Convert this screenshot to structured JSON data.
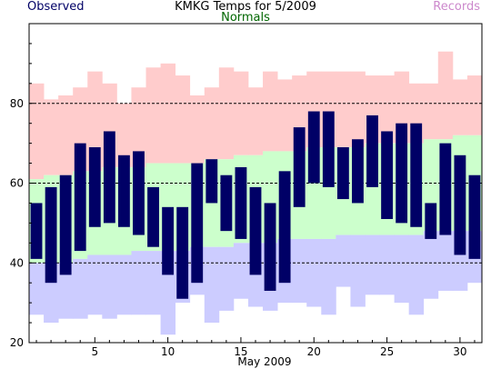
{
  "chart_data": {
    "type": "bar",
    "title": "KMKG Temps for 5/2009",
    "xlabel": "May 2009",
    "ylabel": "",
    "ylim": [
      20,
      100
    ],
    "xlim": [
      0.5,
      31.5
    ],
    "x_ticks": [
      5,
      10,
      15,
      20,
      25,
      30
    ],
    "y_ticks": [
      20,
      40,
      60,
      80
    ],
    "dashed_gridlines": [
      40,
      60,
      80
    ],
    "days": [
      1,
      2,
      3,
      4,
      5,
      6,
      7,
      8,
      9,
      10,
      11,
      12,
      13,
      14,
      15,
      16,
      17,
      18,
      19,
      20,
      21,
      22,
      23,
      24,
      25,
      26,
      27,
      28,
      29,
      30,
      31
    ],
    "legend": {
      "observed": {
        "label": "Observed",
        "color": "#000066"
      },
      "normals": {
        "label": "Normals",
        "color": "#006600"
      },
      "records": {
        "label": "Records",
        "color": "#cc88cc"
      }
    },
    "series": [
      {
        "name": "Observed",
        "color": "#000066",
        "high": [
          55,
          59,
          62,
          70,
          69,
          73,
          67,
          68,
          59,
          54,
          54,
          65,
          66,
          62,
          64,
          59,
          55,
          63,
          74,
          78,
          78,
          69,
          71,
          77,
          73,
          75,
          75,
          55,
          70,
          67,
          62
        ],
        "low": [
          41,
          35,
          37,
          43,
          49,
          50,
          49,
          47,
          44,
          37,
          31,
          35,
          55,
          48,
          46,
          37,
          33,
          35,
          54,
          60,
          59,
          56,
          55,
          59,
          51,
          50,
          49,
          46,
          47,
          42,
          41
        ]
      },
      {
        "name": "Normals",
        "color": "#ccffcc",
        "high": [
          61,
          62,
          62,
          63,
          63,
          64,
          64,
          64,
          65,
          65,
          65,
          65,
          66,
          66,
          67,
          67,
          68,
          68,
          68,
          69,
          69,
          69,
          69,
          70,
          70,
          70,
          70,
          71,
          71,
          72,
          72
        ],
        "low": [
          40,
          40,
          40,
          41,
          42,
          42,
          42,
          43,
          43,
          43,
          43,
          44,
          44,
          44,
          45,
          45,
          45,
          46,
          46,
          46,
          46,
          47,
          47,
          47,
          47,
          47,
          47,
          48,
          48,
          48,
          48
        ]
      },
      {
        "name": "Records",
        "color": "#ffcccc",
        "high": [
          85,
          81,
          82,
          84,
          88,
          85,
          80,
          84,
          89,
          90,
          87,
          82,
          84,
          89,
          88,
          84,
          88,
          86,
          87,
          88,
          88,
          88,
          88,
          87,
          87,
          88,
          85,
          85,
          93,
          86,
          87
        ],
        "low": [
          27,
          25,
          26,
          26,
          27,
          26,
          27,
          27,
          27,
          22,
          30,
          32,
          25,
          28,
          31,
          29,
          28,
          30,
          30,
          29,
          27,
          34,
          29,
          32,
          32,
          30,
          27,
          31,
          33,
          33,
          35
        ]
      }
    ]
  }
}
